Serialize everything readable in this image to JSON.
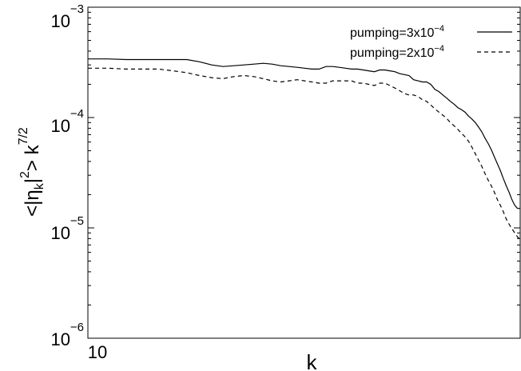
{
  "chart_data": {
    "type": "line",
    "xlabel": "k",
    "ylabel": {
      "base": "<|η",
      "sub": "k",
      "mid": "|",
      "sup": "2",
      "tail": "> k",
      "sup2": "7/2"
    },
    "xscale": "log",
    "yscale": "log",
    "xlim": [
      10,
      78
    ],
    "ylim": [
      1e-06,
      0.001
    ],
    "x_ticks": [
      {
        "value": 10,
        "label": "10"
      }
    ],
    "y_ticks": [
      {
        "value": 1e-06,
        "base": "10",
        "exp": "−6"
      },
      {
        "value": 1e-05,
        "base": "10",
        "exp": "−5"
      },
      {
        "value": 0.0001,
        "base": "10",
        "exp": "−4"
      },
      {
        "value": 0.001,
        "base": "10",
        "exp": "−3"
      }
    ],
    "grid": false,
    "legend_position": "top-right",
    "series": [
      {
        "name": "pumping=3x10",
        "name_exp": "−4",
        "style": "solid",
        "x": [
          10,
          11,
          12,
          13,
          14,
          15,
          16,
          17,
          18,
          19,
          20,
          21,
          22,
          23,
          24,
          25,
          26,
          27,
          28,
          29,
          30,
          31,
          32,
          33,
          34,
          35,
          36,
          37,
          38,
          39,
          40,
          41,
          42,
          43,
          44,
          45,
          46,
          47,
          48,
          49,
          50,
          51,
          52,
          53,
          54,
          55,
          56,
          57,
          58,
          59,
          60,
          61,
          62,
          63,
          64,
          65,
          66,
          67,
          68,
          69,
          70,
          71,
          72,
          73,
          74,
          75,
          76,
          77,
          78
        ],
        "y": [
          0.00034,
          0.00034,
          0.000335,
          0.000335,
          0.000335,
          0.000335,
          0.000335,
          0.00032,
          0.0003,
          0.00029,
          0.000295,
          0.0003,
          0.000305,
          0.00031,
          0.000305,
          0.000295,
          0.00029,
          0.000285,
          0.00028,
          0.000275,
          0.000275,
          0.00029,
          0.00029,
          0.000285,
          0.00028,
          0.000275,
          0.000275,
          0.00027,
          0.000265,
          0.00026,
          0.00027,
          0.00027,
          0.000265,
          0.00026,
          0.00025,
          0.000245,
          0.00024,
          0.00022,
          0.000215,
          0.00021,
          0.00021,
          0.0002,
          0.00018,
          0.000172,
          0.00016,
          0.00015,
          0.00014,
          0.000132,
          0.000123,
          0.000118,
          0.000112,
          0.000103,
          9.7e-05,
          9e-05,
          8.2e-05,
          7.4e-05,
          6.5e-05,
          5.8e-05,
          5.1e-05,
          4.4e-05,
          3.8e-05,
          3.3e-05,
          2.8e-05,
          2.4e-05,
          2.1e-05,
          1.8e-05,
          1.6e-05,
          1.5e-05,
          1.5e-05
        ]
      },
      {
        "name": "pumping=2x10",
        "name_exp": "−4",
        "style": "dashed",
        "x": [
          10,
          11,
          12,
          13,
          14,
          15,
          16,
          17,
          18,
          19,
          20,
          21,
          22,
          23,
          24,
          25,
          26,
          27,
          28,
          29,
          30,
          31,
          32,
          33,
          34,
          35,
          36,
          37,
          38,
          39,
          40,
          41,
          42,
          43,
          44,
          45,
          46,
          47,
          48,
          49,
          50,
          51,
          52,
          53,
          54,
          55,
          56,
          57,
          58,
          59,
          60,
          61,
          62,
          63,
          64,
          65,
          66,
          67,
          68,
          69,
          70,
          71,
          72,
          73,
          74,
          75,
          76,
          77,
          78
        ],
        "y": [
          0.00028,
          0.00028,
          0.000275,
          0.000275,
          0.000275,
          0.000265,
          0.000255,
          0.00024,
          0.00023,
          0.000225,
          0.000235,
          0.00024,
          0.000235,
          0.000225,
          0.000215,
          0.00021,
          0.000215,
          0.00022,
          0.000215,
          0.00021,
          0.000205,
          0.000205,
          0.000215,
          0.000215,
          0.000215,
          0.000215,
          0.000205,
          0.000205,
          0.0002,
          0.000195,
          0.000205,
          0.000205,
          0.000195,
          0.000185,
          0.000175,
          0.000165,
          0.00016,
          0.00016,
          0.000155,
          0.000145,
          0.00014,
          0.00013,
          0.00012,
          0.000112,
          0.000105,
          9.8e-05,
          9e-05,
          8.4e-05,
          7.8e-05,
          7.2e-05,
          6.7e-05,
          6.1e-05,
          5.4e-05,
          4.7e-05,
          4.1e-05,
          3.6e-05,
          3.1e-05,
          2.7e-05,
          2.4e-05,
          2.1e-05,
          1.8e-05,
          1.6e-05,
          1.4e-05,
          1.2e-05,
          1.08e-05,
          9.8e-06,
          9e-06,
          8.3e-06,
          7.8e-06
        ]
      }
    ]
  }
}
